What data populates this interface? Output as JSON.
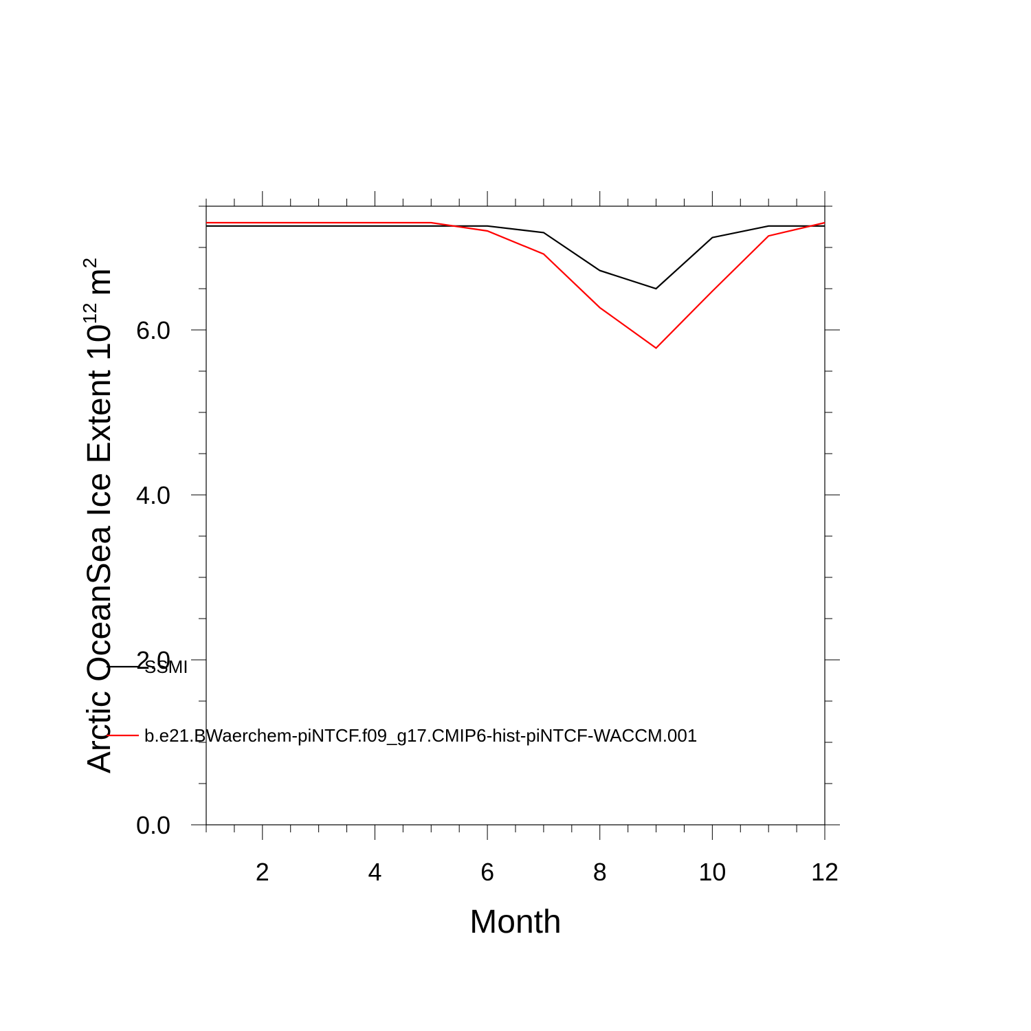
{
  "chart_data": {
    "type": "line",
    "title": "",
    "xlabel": "Month",
    "ylabel": {
      "main": "Arctic OceanSea Ice Extent 10",
      "exponent": "12",
      "unit": "m",
      "unit_exponent": "2"
    },
    "xlim": [
      1,
      12
    ],
    "ylim": [
      0,
      7.5
    ],
    "x_ticks": [
      2,
      4,
      6,
      8,
      10,
      12
    ],
    "x_tick_labels": [
      "2",
      "4",
      "6",
      "8",
      "10",
      "12"
    ],
    "y_ticks": [
      0,
      2,
      4,
      6
    ],
    "y_tick_labels": [
      "0.0",
      "2.0",
      "4.0",
      "6.0"
    ],
    "grid": false,
    "legend_position": "lower-left",
    "x": [
      1,
      2,
      3,
      4,
      5,
      6,
      7,
      8,
      9,
      10,
      11,
      12
    ],
    "series": [
      {
        "name": "SSMI",
        "color": "#000000",
        "values": [
          7.26,
          7.26,
          7.26,
          7.26,
          7.26,
          7.26,
          7.18,
          6.72,
          6.5,
          7.12,
          7.26,
          7.26
        ]
      },
      {
        "name": "b.e21.BWaerchem-piNTCF.f09_g17.CMIP6-hist-piNTCF-WACCM.001",
        "color": "#ff0000",
        "values": [
          7.3,
          7.3,
          7.3,
          7.3,
          7.3,
          7.2,
          6.92,
          6.27,
          5.78,
          6.47,
          7.14,
          7.3
        ]
      }
    ]
  }
}
